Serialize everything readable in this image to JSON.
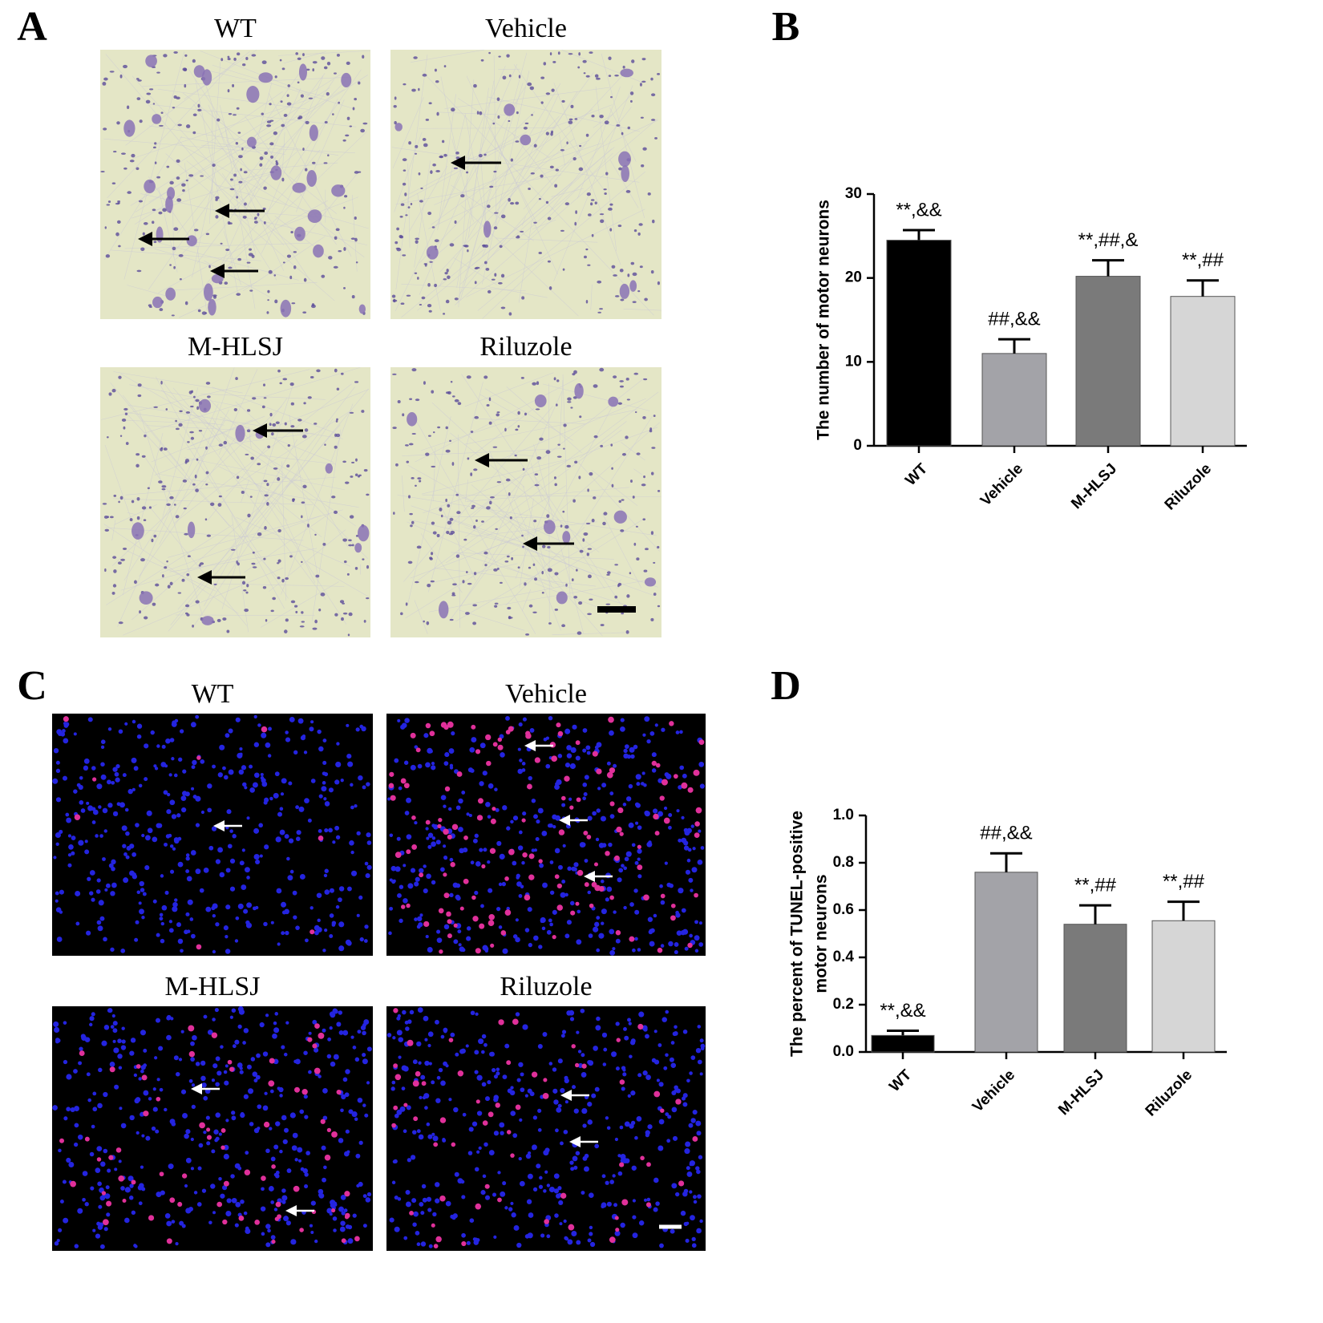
{
  "image_panels": [
    {
      "label": "A",
      "titles": [
        "WT",
        "Vehicle",
        "M-HLSJ",
        "Riluzole"
      ]
    },
    {
      "label": "C",
      "titles": [
        "WT",
        "Vehicle",
        "M-HLSJ",
        "Riluzole"
      ]
    }
  ],
  "chart_data": [
    {
      "type": "bar",
      "panel_label": "B",
      "ylabel": [
        "The number of motor neurons"
      ],
      "categories": [
        "WT",
        "Vehicle",
        "M-HLSJ",
        "Riluzole"
      ],
      "values": [
        24.5,
        11,
        20.2,
        17.8
      ],
      "errors": [
        1.2,
        1.7,
        1.9,
        1.9
      ],
      "annotations": [
        "**,&&",
        "##,&&",
        "**,##,&",
        "**,##"
      ],
      "colors": [
        "#000000",
        "#a3a3a8",
        "#7a7a7a",
        "#d6d6d6"
      ],
      "ylim": [
        0,
        30
      ],
      "yticks": [
        0,
        10,
        20,
        30
      ]
    },
    {
      "type": "bar",
      "panel_label": "D",
      "ylabel": [
        "The percent of TUNEL-positive",
        "motor neurons"
      ],
      "categories": [
        "WT",
        "Vehicle",
        "M-HLSJ",
        "Riluzole"
      ],
      "values": [
        0.07,
        0.76,
        0.54,
        0.555
      ],
      "errors": [
        0.02,
        0.08,
        0.08,
        0.08
      ],
      "annotations": [
        "**,&&",
        "##,&&",
        "**,##",
        "**,##"
      ],
      "colors": [
        "#000000",
        "#a3a3a8",
        "#7a7a7a",
        "#d6d6d6"
      ],
      "ylim": [
        0,
        1.0
      ],
      "yticks": [
        {
          "value": 0,
          "label": "0.0"
        },
        0.2,
        0.4,
        0.6,
        0.8,
        {
          "value": 1,
          "label": "1.0"
        }
      ]
    }
  ]
}
